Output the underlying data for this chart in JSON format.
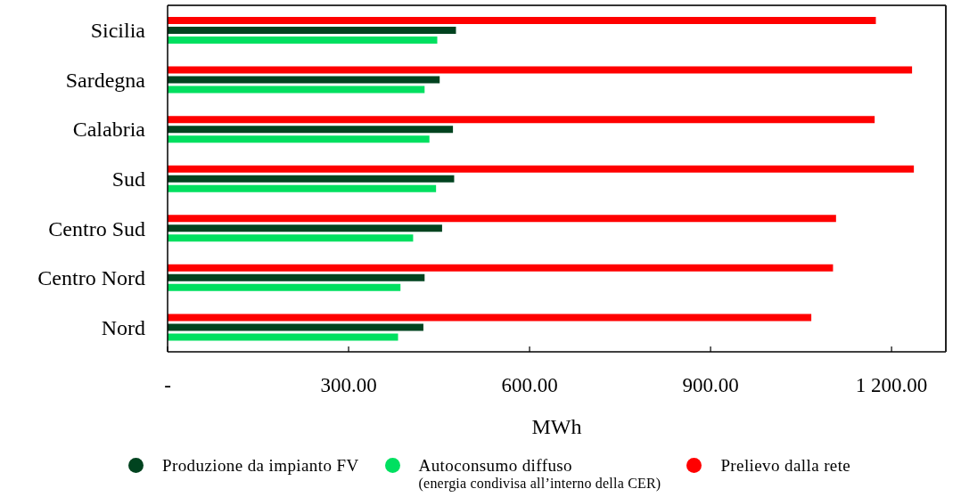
{
  "chart_data": {
    "type": "bar",
    "orientation": "horizontal",
    "xlabel": "MWh",
    "categories": [
      "Sicilia",
      "Sardegna",
      "Calabria",
      "Sud",
      "Centro Sud",
      "Centro Nord",
      "Nord"
    ],
    "series": [
      {
        "name": "Produzione da impianto FV",
        "color": "#00431f",
        "values": [
          478,
          451,
          473,
          475,
          455,
          426,
          424
        ]
      },
      {
        "name": "Autoconsumo diffuso\n(energia condivisa all’interno della CER)",
        "color": "#00e060",
        "values": [
          447,
          426,
          434,
          445,
          407,
          386,
          382
        ]
      },
      {
        "name": "Prelievo dalla rete",
        "color": "#ff0000",
        "values": [
          1174,
          1234,
          1172,
          1237,
          1108,
          1103,
          1067
        ]
      }
    ],
    "xlim": [
      0,
      1290
    ],
    "xticks": [
      {
        "value": 0,
        "label": "-"
      },
      {
        "value": 300,
        "label": "300.00"
      },
      {
        "value": 600,
        "label": "600.00"
      },
      {
        "value": 900,
        "label": "900.00"
      },
      {
        "value": 1200,
        "label": "1 200.00"
      }
    ],
    "legend": "bottom"
  }
}
